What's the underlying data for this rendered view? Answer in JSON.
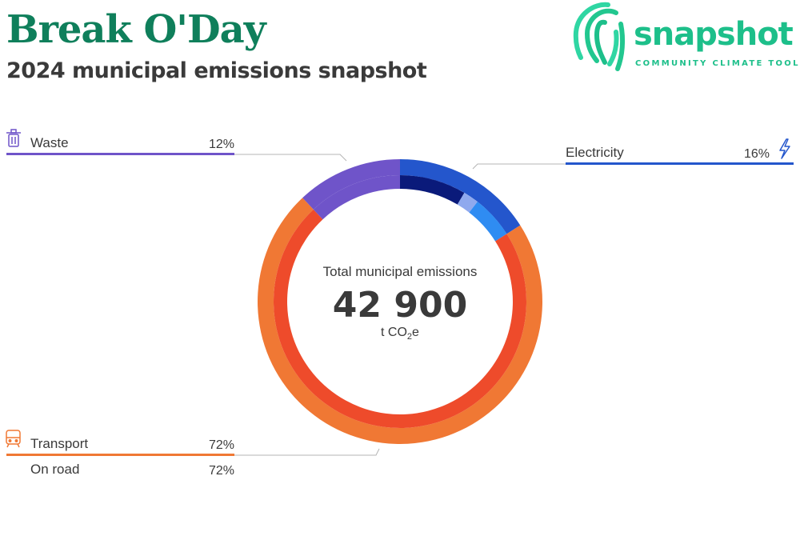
{
  "header": {
    "title": "Break O'Day",
    "subtitle": "2024 municipal emissions snapshot"
  },
  "logo": {
    "wordmark": "snapshot",
    "tagline": "COMMUNITY CLIMATE TOOL",
    "color": "#1dbf8a"
  },
  "chart_data": {
    "type": "pie",
    "title": "Break O'Day",
    "subtitle": "2024 municipal emissions snapshot",
    "center": {
      "label": "Total municipal emissions",
      "value": "42 900",
      "unit_prefix": "t CO",
      "unit_sub": "2",
      "unit_suffix": "e"
    },
    "total_t_co2e": 42900,
    "sectors": [
      {
        "name": "Electricity",
        "percent_label": "16%",
        "share": 0.16,
        "color": "#2456cc",
        "icon": "lightning-icon",
        "subsectors": [
          {
            "share": 0.085,
            "color": "#0a1a7a"
          },
          {
            "share": 0.02,
            "color": "#8fa9ee"
          },
          {
            "share": 0.055,
            "color": "#2f8cf2"
          }
        ]
      },
      {
        "name": "Transport",
        "percent_label": "72%",
        "share": 0.72,
        "color": "#f07834",
        "icon": "train-icon",
        "subsectors": [
          {
            "name": "On road",
            "percent_label": "72%",
            "share": 0.72,
            "color": "#ee4b2b"
          }
        ]
      },
      {
        "name": "Waste",
        "percent_label": "12%",
        "share": 0.12,
        "color": "#6f54c9",
        "icon": "trash-icon",
        "subsectors": []
      }
    ]
  }
}
